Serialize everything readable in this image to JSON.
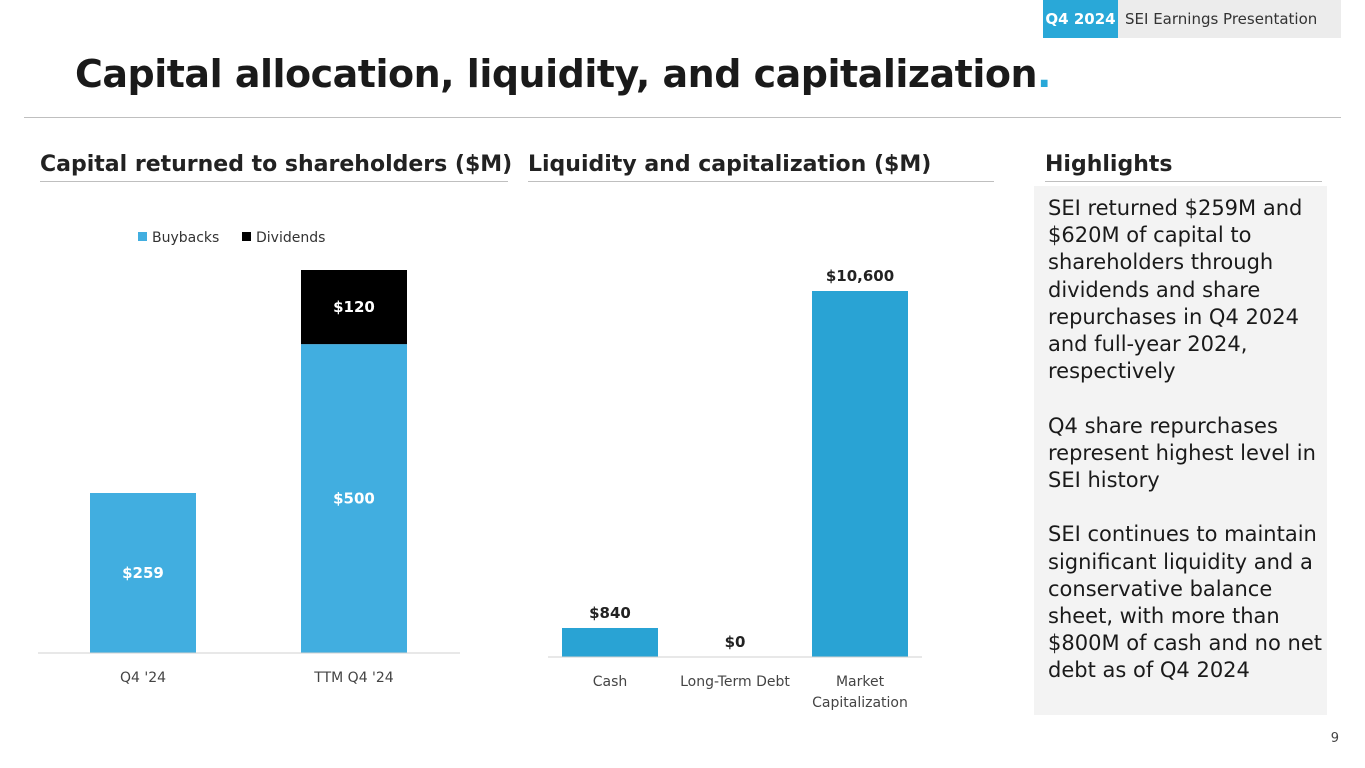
{
  "header": {
    "quarter_tag": "Q4 2024",
    "doc_title": "SEI Earnings Presentation"
  },
  "title": {
    "text": "Capital allocation, liquidity, and capitalization",
    "accent": "."
  },
  "colors": {
    "accent": "#29a8d8",
    "buybacks": "#41aee0",
    "dividends": "#000000",
    "liquidity_bar": "#29a3d4",
    "highlight_bg": "#f3f3f3"
  },
  "sections": {
    "capital_returned": "Capital returned to shareholders ($M)",
    "liquidity": "Liquidity and capitalization ($M)",
    "highlights": "Highlights"
  },
  "chart_data": [
    {
      "type": "bar",
      "stacked": true,
      "title": "Capital returned to shareholders ($M)",
      "categories": [
        "Q4 '24",
        "TTM Q4 '24"
      ],
      "series": [
        {
          "name": "Buybacks",
          "values": [
            259,
            500
          ],
          "labels": [
            "$259",
            "$500"
          ]
        },
        {
          "name": "Dividends",
          "values": [
            0,
            120
          ],
          "labels": [
            "",
            "$120"
          ]
        }
      ],
      "legend": "top-left",
      "ylim": [
        0,
        620
      ],
      "grid": false
    },
    {
      "type": "bar",
      "title": "Liquidity and capitalization ($M)",
      "categories": [
        "Cash",
        "Long-Term Debt",
        "Market Capitalization"
      ],
      "values": [
        840,
        0,
        10600
      ],
      "labels": [
        "$840",
        "$0",
        "$10,600"
      ],
      "ylim": [
        0,
        10600
      ],
      "grid": false
    }
  ],
  "highlights": [
    "SEI returned $259M and $620M of capital to shareholders through dividends and share repurchases in Q4 2024 and full-year 2024, respectively",
    "Q4 share repurchases represent highest level in SEI history",
    "SEI continues to maintain significant liquidity and a conservative balance sheet, with more than $800M of cash and no net debt as of Q4 2024"
  ],
  "page_number": "9"
}
